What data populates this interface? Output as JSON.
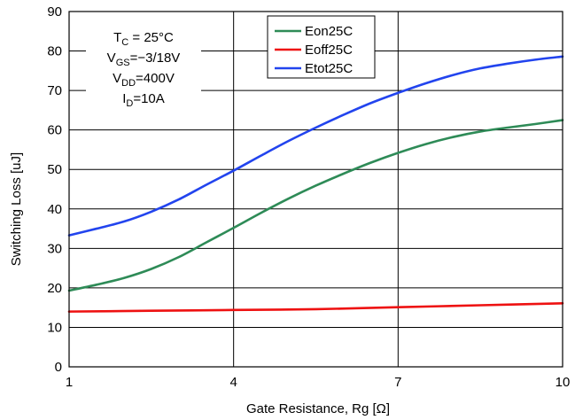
{
  "chart_data": {
    "type": "line",
    "title": "",
    "xlabel": "Gate Resistance, Rg [Ω]",
    "ylabel": "Switching Loss [uJ]",
    "xlim": [
      1,
      10
    ],
    "ylim": [
      0,
      90
    ],
    "x_ticks": [
      1,
      4,
      7,
      10
    ],
    "y_ticks": [
      0,
      10,
      20,
      30,
      40,
      50,
      60,
      70,
      80,
      90
    ],
    "grid": true,
    "legend_position": "top-center",
    "conditions": [
      {
        "base": "T",
        "sub": "C",
        "rest": " = 25°C"
      },
      {
        "base": "V",
        "sub": "GS",
        "rest": "=−3/18V"
      },
      {
        "base": "V",
        "sub": "DD",
        "rest": "=400V"
      },
      {
        "base": "I",
        "sub": "D",
        "rest": "=10A"
      }
    ],
    "series": [
      {
        "name": "Eon25C",
        "color": "#2e8b57",
        "x": [
          1,
          1.5,
          2,
          2.5,
          3,
          3.5,
          4,
          4.5,
          5,
          5.5,
          6,
          6.5,
          7,
          7.5,
          8,
          8.5,
          9,
          9.5,
          10
        ],
        "y": [
          19.3,
          20.8,
          22.5,
          24.8,
          27.8,
          31.5,
          35.2,
          39,
          42.6,
          45.9,
          48.9,
          51.7,
          54.2,
          56.4,
          58.2,
          59.6,
          60.6,
          61.5,
          62.5
        ]
      },
      {
        "name": "Eoff25C",
        "color": "#ee1111",
        "x": [
          1,
          2.5,
          4,
          5.5,
          7,
          8.5,
          10
        ],
        "y": [
          14,
          14.2,
          14.4,
          14.6,
          15.1,
          15.6,
          16.1
        ]
      },
      {
        "name": "Etot25C",
        "color": "#2244ee",
        "x": [
          1,
          1.5,
          2,
          2.5,
          3,
          3.5,
          4,
          4.5,
          5,
          5.5,
          6,
          6.5,
          7,
          7.5,
          8,
          8.5,
          9,
          9.5,
          10
        ],
        "y": [
          33.3,
          35.0,
          36.8,
          39.3,
          42.4,
          46.1,
          49.7,
          53.5,
          57.2,
          60.6,
          63.8,
          66.8,
          69.4,
          71.8,
          73.9,
          75.6,
          76.8,
          77.8,
          78.6
        ]
      }
    ]
  }
}
